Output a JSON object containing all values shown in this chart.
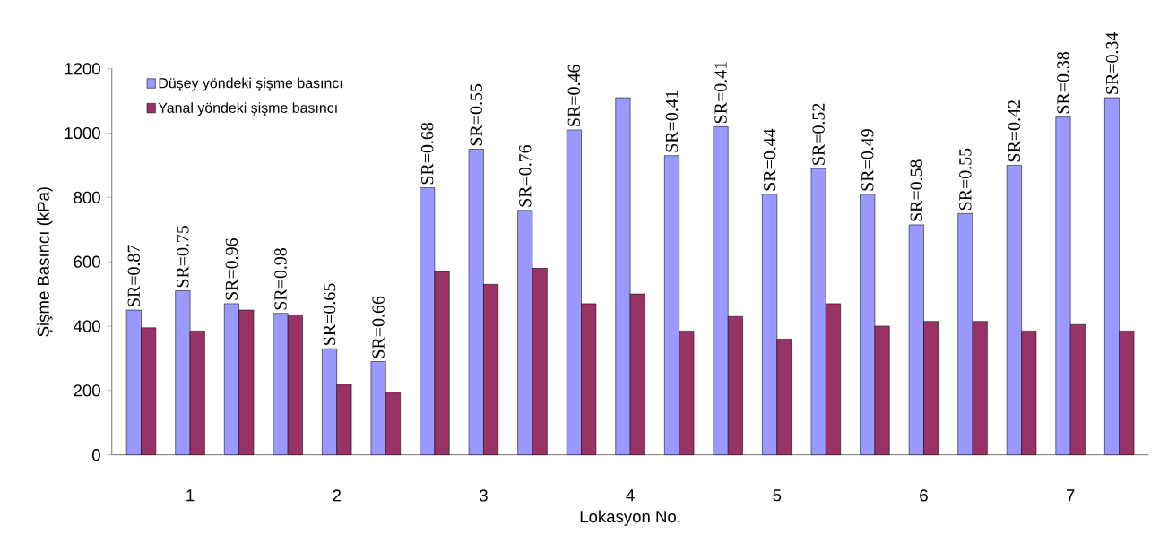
{
  "chart_data": {
    "type": "bar",
    "xlabel": "Lokasyon No.",
    "ylabel": "Şişme Basıncı (kPa)",
    "categories": [
      null,
      "1",
      null,
      null,
      "2",
      null,
      null,
      "3",
      null,
      null,
      "4",
      null,
      null,
      "5",
      null,
      null,
      "6",
      null,
      null,
      "7",
      null
    ],
    "series": [
      {
        "name": "Düşey yöndeki şişme basıncı",
        "color": "#9999ff",
        "values": [
          450,
          510,
          470,
          440,
          330,
          290,
          830,
          950,
          760,
          1010,
          1110,
          930,
          1020,
          810,
          890,
          810,
          715,
          750,
          900,
          1050,
          1110
        ]
      },
      {
        "name": "Yanal yöndeki şişme basıncı",
        "color": "#993366",
        "values": [
          395,
          385,
          450,
          435,
          220,
          195,
          570,
          530,
          580,
          470,
          500,
          385,
          430,
          360,
          470,
          400,
          415,
          415,
          385,
          405,
          385
        ]
      }
    ],
    "annotations": [
      {
        "text": "SR=0.87",
        "y": 450
      },
      {
        "text": "SR=0.75",
        "y": 510
      },
      {
        "text": "SR=0.96",
        "y": 470
      },
      {
        "text": "SR=0.98",
        "y": 440
      },
      {
        "text": "SR=0.65",
        "y": 330
      },
      {
        "text": "SR=0.66",
        "y": 290
      },
      {
        "text": "SR=0.68",
        "y": 830
      },
      {
        "text": "SR=0.55",
        "y": 950
      },
      {
        "text": "SR=0.76",
        "y": 760
      },
      {
        "text": "SR=0.46",
        "y": 1010
      },
      {
        "text": "SR=0.41",
        "y": 930
      },
      {
        "text": "SR=0.41",
        "y": 1020
      },
      {
        "text": "SR=0.44",
        "y": 810
      },
      {
        "text": "SR=0.52",
        "y": 890
      },
      {
        "text": "SR=0.49",
        "y": 810
      },
      {
        "text": "SR=0.58",
        "y": 715
      },
      {
        "text": "SR=0.55",
        "y": 750
      },
      {
        "text": "SR=0.42",
        "y": 900
      },
      {
        "text": "SR=0.38",
        "y": 1050
      },
      {
        "text": "SR=0.34",
        "y": 1110
      }
    ],
    "ylim": [
      0,
      1200
    ],
    "yticks": [
      0,
      200,
      400,
      600,
      800,
      1000,
      1200
    ],
    "grid": false,
    "legend": "top left"
  }
}
